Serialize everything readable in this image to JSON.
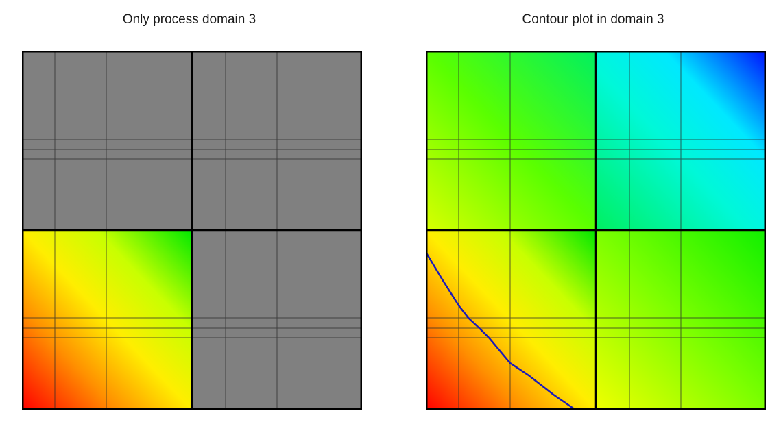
{
  "panels": {
    "left": {
      "title": "Only process domain 3"
    },
    "right": {
      "title": "Contour plot in domain 3"
    }
  },
  "mesh": {
    "domains": [
      {
        "id": 1,
        "position": "top-left"
      },
      {
        "id": 2,
        "position": "top-right"
      },
      {
        "id": 3,
        "position": "bottom-left"
      },
      {
        "id": 4,
        "position": "bottom-right"
      }
    ],
    "colors": {
      "inactive_fill": "#808080",
      "thin_line": "#2a2a2a",
      "domain_border": "#000000",
      "contour_line": "#1a1ab8"
    },
    "colormap": [
      "#ff0000",
      "#ff8000",
      "#ffd000",
      "#eeff00",
      "#a8ff00",
      "#00ff00",
      "#00ffc8",
      "#00ffff",
      "#0000ff"
    ]
  }
}
